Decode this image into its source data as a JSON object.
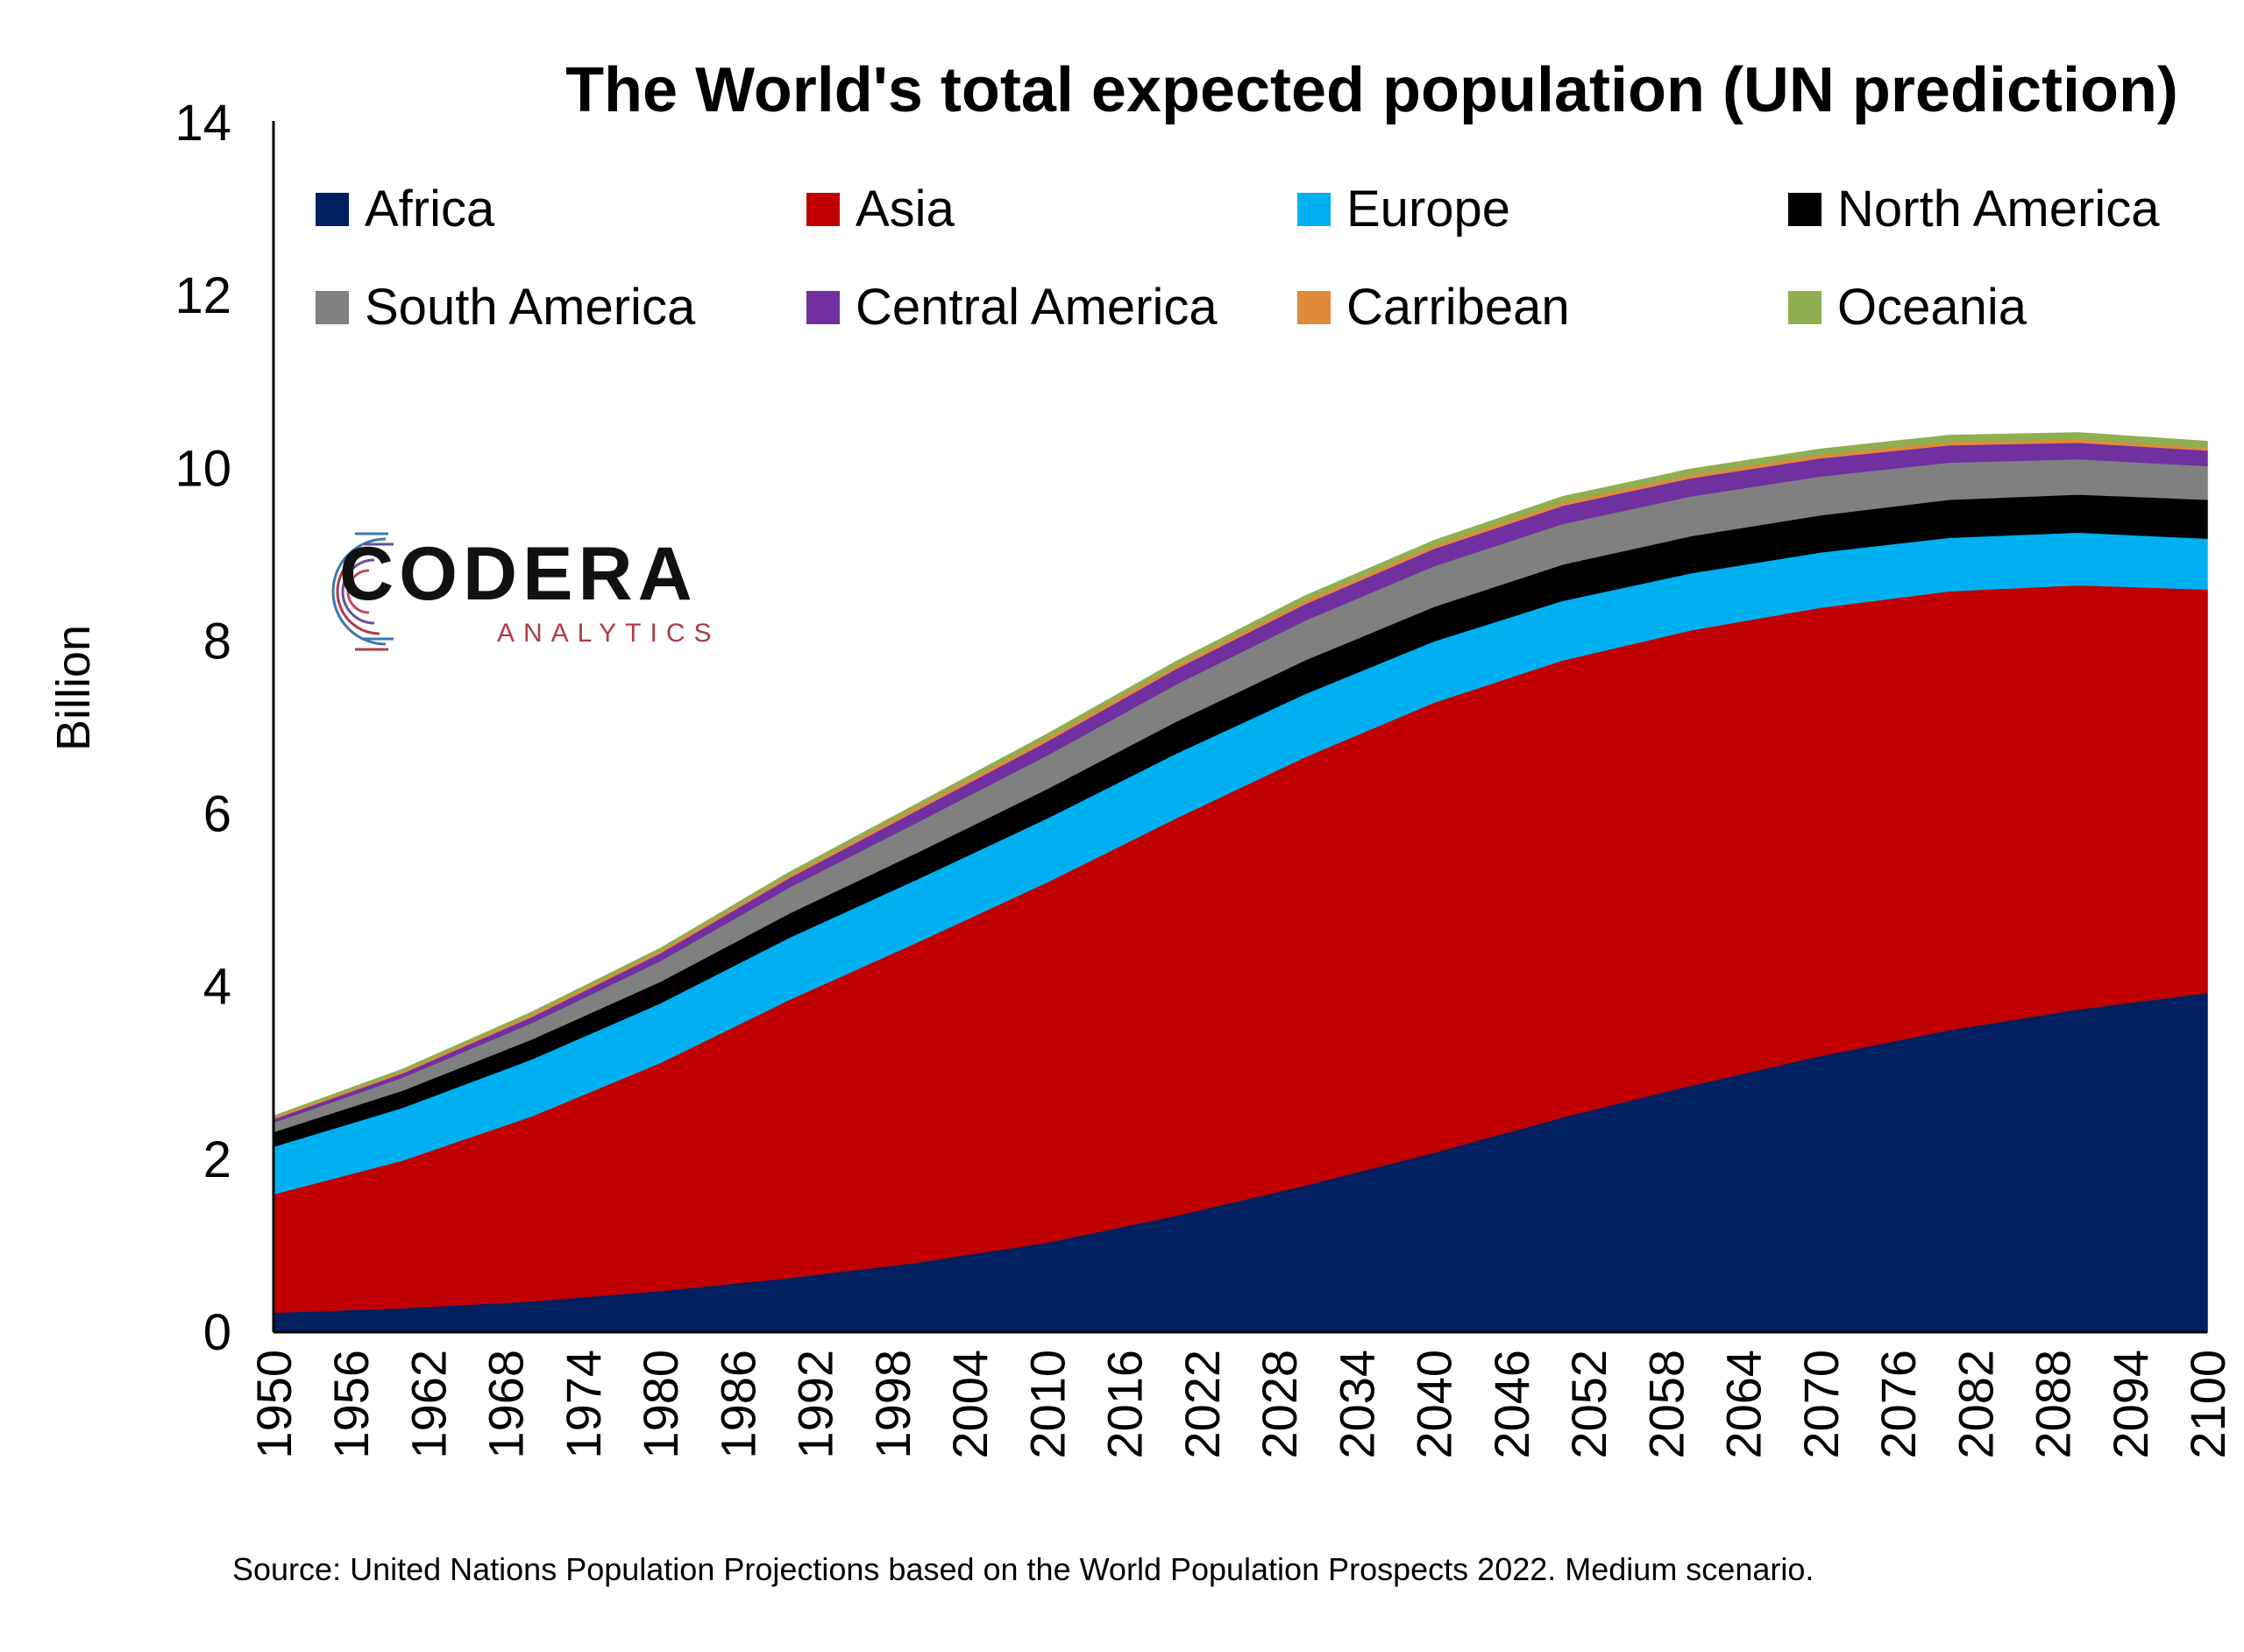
{
  "chart_data": {
    "type": "area",
    "stacked": true,
    "title": "The World's total expected population  (UN prediction)",
    "ylabel": "Billion",
    "xlabel": "",
    "ylim": [
      0,
      14
    ],
    "yticks": [
      0,
      2,
      4,
      6,
      8,
      10,
      12,
      14
    ],
    "xlim": [
      1950,
      2100
    ],
    "xticks": [
      1950,
      1956,
      1962,
      1968,
      1974,
      1980,
      1986,
      1992,
      1998,
      2004,
      2010,
      2016,
      2022,
      2028,
      2034,
      2040,
      2046,
      2052,
      2058,
      2064,
      2070,
      2076,
      2082,
      2088,
      2094,
      2100
    ],
    "grid": false,
    "legend_position": "top",
    "x": [
      1950,
      1960,
      1970,
      1980,
      1990,
      2000,
      2010,
      2020,
      2030,
      2040,
      2050,
      2060,
      2070,
      2080,
      2090,
      2100
    ],
    "series": [
      {
        "name": "Africa",
        "color": "#002060",
        "values": [
          0.23,
          0.28,
          0.36,
          0.48,
          0.63,
          0.81,
          1.04,
          1.35,
          1.7,
          2.08,
          2.49,
          2.86,
          3.2,
          3.5,
          3.74,
          3.93
        ]
      },
      {
        "name": "Asia",
        "color": "#C00000",
        "values": [
          1.37,
          1.71,
          2.14,
          2.64,
          3.22,
          3.71,
          4.17,
          4.6,
          4.96,
          5.21,
          5.29,
          5.27,
          5.19,
          5.08,
          4.91,
          4.67
        ]
      },
      {
        "name": "Europe",
        "color": "#00B0F0",
        "values": [
          0.55,
          0.61,
          0.66,
          0.69,
          0.72,
          0.73,
          0.74,
          0.75,
          0.73,
          0.71,
          0.69,
          0.66,
          0.64,
          0.62,
          0.61,
          0.59
        ]
      },
      {
        "name": "North America",
        "color": "#000000",
        "values": [
          0.17,
          0.2,
          0.23,
          0.25,
          0.28,
          0.31,
          0.34,
          0.37,
          0.39,
          0.4,
          0.42,
          0.43,
          0.43,
          0.44,
          0.44,
          0.45
        ]
      },
      {
        "name": "South America",
        "color": "#808080",
        "values": [
          0.11,
          0.15,
          0.19,
          0.24,
          0.3,
          0.35,
          0.39,
          0.43,
          0.46,
          0.47,
          0.47,
          0.46,
          0.45,
          0.43,
          0.41,
          0.39
        ]
      },
      {
        "name": "Central America",
        "color": "#7030A0",
        "values": [
          0.04,
          0.05,
          0.07,
          0.09,
          0.11,
          0.14,
          0.16,
          0.18,
          0.19,
          0.2,
          0.21,
          0.21,
          0.21,
          0.2,
          0.19,
          0.18
        ]
      },
      {
        "name": "Carribean",
        "color": "#E08A3C",
        "values": [
          0.02,
          0.02,
          0.03,
          0.03,
          0.03,
          0.04,
          0.04,
          0.04,
          0.04,
          0.04,
          0.04,
          0.04,
          0.04,
          0.04,
          0.04,
          0.03
        ]
      },
      {
        "name": "Oceania",
        "color": "#8FAF50",
        "values": [
          0.01,
          0.02,
          0.02,
          0.02,
          0.03,
          0.03,
          0.04,
          0.04,
          0.05,
          0.05,
          0.06,
          0.06,
          0.06,
          0.07,
          0.07,
          0.07
        ]
      }
    ]
  },
  "legend": [
    {
      "label": "Africa",
      "color": "#002060"
    },
    {
      "label": "Asia",
      "color": "#C00000"
    },
    {
      "label": "Europe",
      "color": "#00B0F0"
    },
    {
      "label": "North America",
      "color": "#000000"
    },
    {
      "label": "South America",
      "color": "#808080"
    },
    {
      "label": "Central America",
      "color": "#7030A0"
    },
    {
      "label": "Carribean",
      "color": "#E08A3C"
    },
    {
      "label": "Oceania",
      "color": "#8FAF50"
    }
  ],
  "logo": {
    "name": "CODERA",
    "subtitle": "ANALYTICS"
  },
  "source": "Source: United Nations Population Projections based on the World Population Prospects 2022. Medium scenario."
}
